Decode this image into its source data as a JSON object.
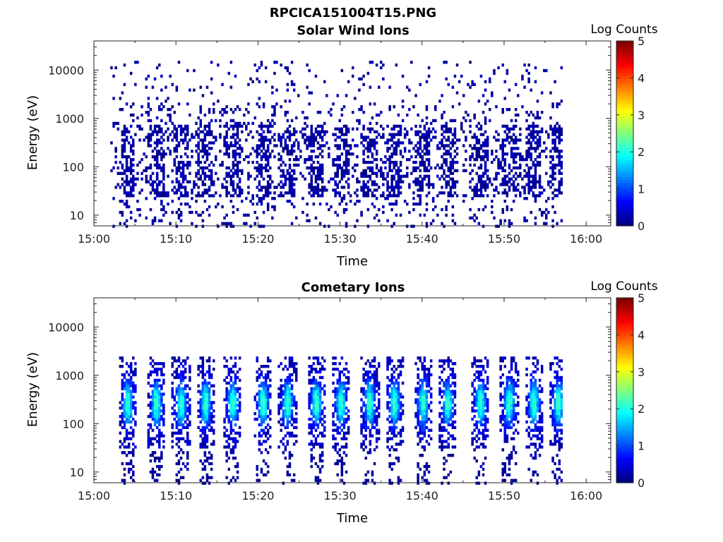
{
  "figure_title": "RPCICA151004T15.PNG",
  "chart_data": [
    {
      "type": "heatmap",
      "title": "Solar Wind Ions",
      "xlabel": "Time",
      "ylabel": "Energy (eV)",
      "yscale": "log",
      "x_ticks": [
        "15:00",
        "15:10",
        "15:20",
        "15:30",
        "15:40",
        "15:50",
        "16:00"
      ],
      "y_ticks": [
        "10",
        "100",
        "1000",
        "10000"
      ],
      "xlim": [
        "15:00",
        "16:03"
      ],
      "ylim": [
        6,
        40000
      ],
      "colorbar": {
        "label": "Log Counts",
        "ticks": [
          "0",
          "1",
          "2",
          "3",
          "4",
          "5"
        ],
        "range": [
          0,
          5
        ],
        "colormap": "jet"
      },
      "data_time_range": [
        "15:02",
        "15:57"
      ],
      "data_summary": "Sparse low counts (Log Counts ≈ 0–0.3) scattered across ~6 eV–12 keV, denser between ~30 eV and ~800 eV with periodic enhancements about every 3.3 minutes.",
      "burst_centers_min": [
        4.0,
        7.5,
        10.5,
        13.5,
        16.8,
        20.5,
        23.5,
        27.0,
        30.0,
        33.5,
        36.5,
        40.0,
        43.0,
        47.0,
        50.5,
        53.5,
        56.5
      ]
    },
    {
      "type": "heatmap",
      "title": "Cometary Ions",
      "xlabel": "Time",
      "ylabel": "Energy (eV)",
      "yscale": "log",
      "x_ticks": [
        "15:00",
        "15:10",
        "15:20",
        "15:30",
        "15:40",
        "15:50",
        "16:00"
      ],
      "y_ticks": [
        "10",
        "100",
        "1000",
        "10000"
      ],
      "xlim": [
        "15:00",
        "16:03"
      ],
      "ylim": [
        6,
        40000
      ],
      "colorbar": {
        "label": "Log Counts",
        "ticks": [
          "0",
          "1",
          "2",
          "3",
          "4",
          "5"
        ],
        "range": [
          0,
          5
        ],
        "colormap": "jet"
      },
      "data_time_range": [
        "15:02",
        "15:57"
      ],
      "data_summary": "Periodic bursts (~3.3 min period) spanning ~40 eV–2 keV with peak Log Counts ≈ 1.5–2 near 200–400 eV; sparse low-count streaks down to ~6 eV.",
      "burst_centers_min": [
        4.0,
        7.5,
        10.5,
        13.5,
        16.8,
        20.5,
        23.5,
        27.0,
        30.0,
        33.5,
        36.5,
        40.0,
        43.0,
        47.0,
        50.5,
        53.5,
        56.5
      ],
      "burst_peak_energy_eV": 250,
      "burst_peak_log_counts": 1.8
    }
  ],
  "colors": {
    "axis": "#222222",
    "low_count": "#00008f"
  }
}
